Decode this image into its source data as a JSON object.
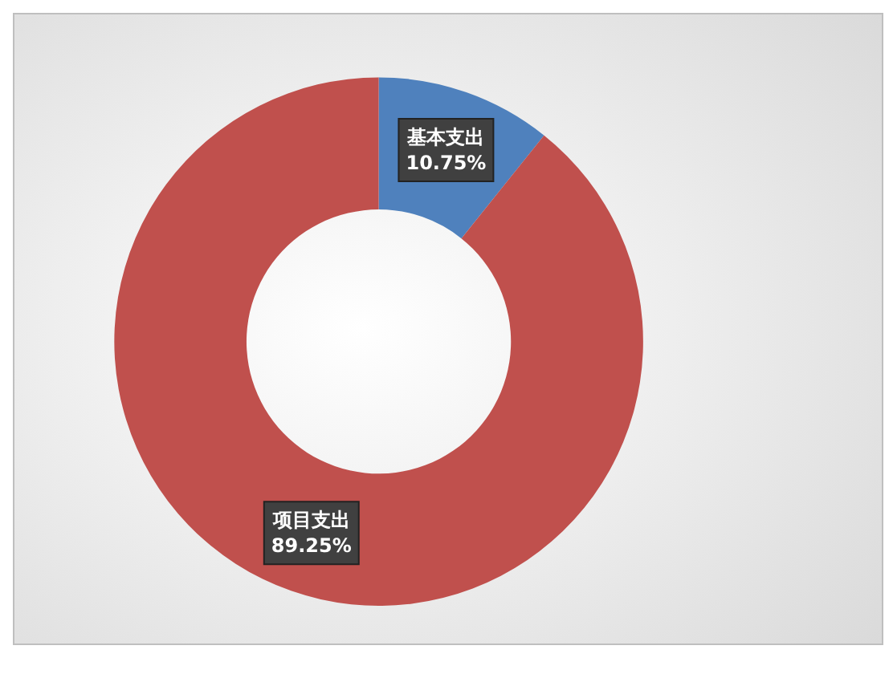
{
  "chart_data": {
    "type": "donut",
    "categories": [
      "基本支出",
      "项目支出"
    ],
    "values": [
      10.75,
      89.25
    ],
    "colors": [
      "#4f81bd",
      "#c0504d"
    ],
    "value_labels": [
      "10.75%",
      "89.25%"
    ],
    "legend": false
  }
}
